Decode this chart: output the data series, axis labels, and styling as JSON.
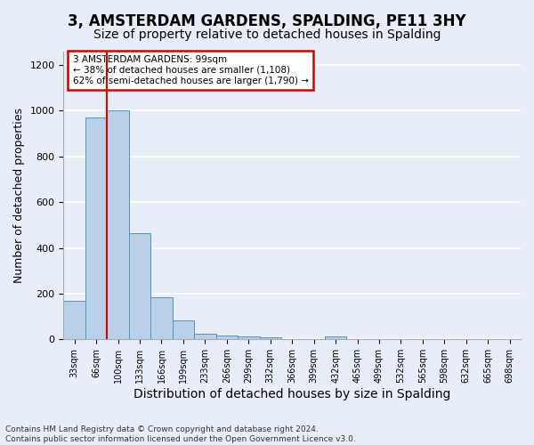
{
  "title": "3, AMSTERDAM GARDENS, SPALDING, PE11 3HY",
  "subtitle": "Size of property relative to detached houses in Spalding",
  "xlabel": "Distribution of detached houses by size in Spalding",
  "ylabel": "Number of detached properties",
  "footer": "Contains HM Land Registry data © Crown copyright and database right 2024.\nContains public sector information licensed under the Open Government Licence v3.0.",
  "bins": [
    "33sqm",
    "66sqm",
    "100sqm",
    "133sqm",
    "166sqm",
    "199sqm",
    "233sqm",
    "266sqm",
    "299sqm",
    "332sqm",
    "366sqm",
    "399sqm",
    "432sqm",
    "465sqm",
    "499sqm",
    "532sqm",
    "565sqm",
    "598sqm",
    "632sqm",
    "665sqm",
    "698sqm"
  ],
  "values": [
    170,
    970,
    1000,
    465,
    185,
    85,
    25,
    18,
    12,
    10,
    0,
    0,
    12,
    0,
    0,
    0,
    0,
    0,
    0,
    0,
    0
  ],
  "bar_color": "#b8d0e8",
  "bar_edge_color": "#5a8fc0",
  "subject_line_color": "#cc0000",
  "ylim": [
    0,
    1260
  ],
  "annotation_text": "3 AMSTERDAM GARDENS: 99sqm\n← 38% of detached houses are smaller (1,108)\n62% of semi-detached houses are larger (1,790) →",
  "annotation_box_color": "#cc0000",
  "background_color": "#e8eef8",
  "grid_color": "#ffffff",
  "title_fontsize": 12,
  "subtitle_fontsize": 10,
  "ylabel_fontsize": 9,
  "xlabel_fontsize": 10
}
